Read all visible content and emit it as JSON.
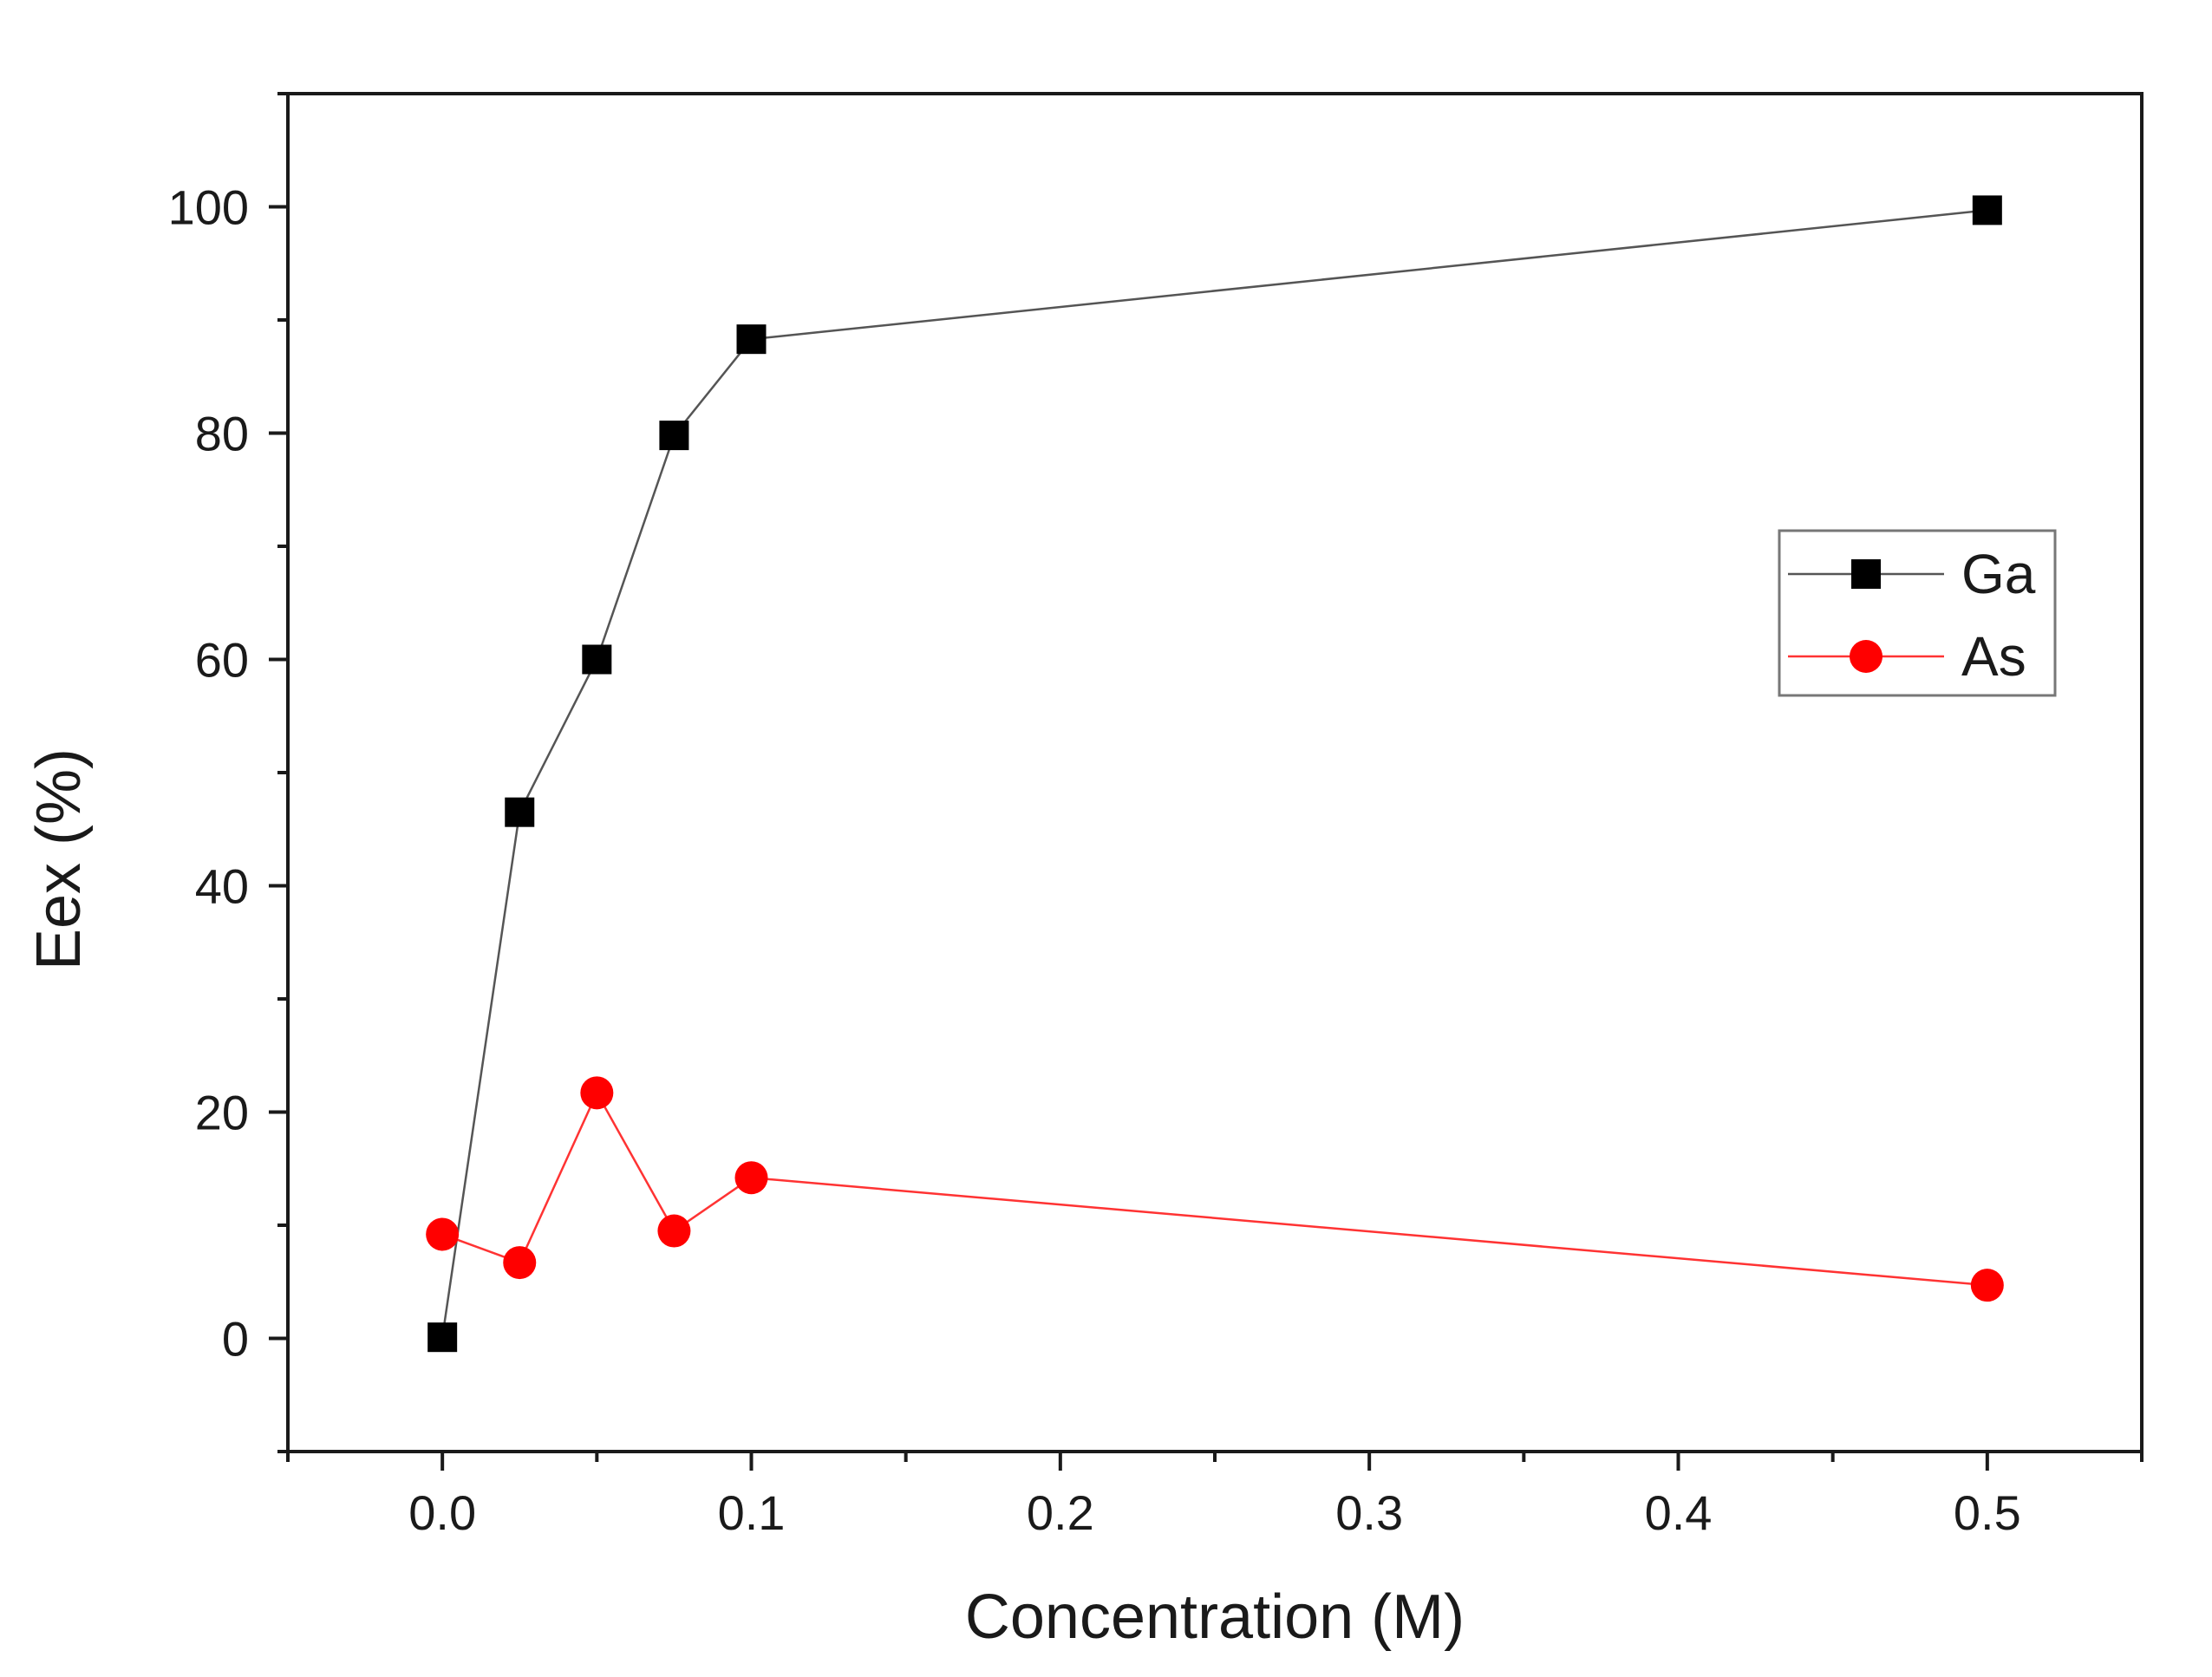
{
  "chart_data": {
    "type": "line",
    "title": "",
    "xlabel": "Concentration (M)",
    "ylabel": "Eex (%)",
    "xlim": [
      -0.05,
      0.55
    ],
    "ylim": [
      -10,
      110
    ],
    "x_ticks": [
      0.0,
      0.1,
      0.2,
      0.3,
      0.4,
      0.5
    ],
    "x_tick_labels": [
      "0.0",
      "0.1",
      "0.2",
      "0.3",
      "0.4",
      "0.5"
    ],
    "x_minor_step": 0.05,
    "y_ticks": [
      0,
      20,
      40,
      60,
      80,
      100
    ],
    "y_tick_labels": [
      "0",
      "20",
      "40",
      "60",
      "80",
      "100"
    ],
    "y_minor_step": 10,
    "grid": false,
    "legend_position": "right",
    "series": [
      {
        "name": "Ga",
        "marker": "square",
        "color": "#000000",
        "line_color": "#555555",
        "x": [
          0.0,
          0.025,
          0.05,
          0.075,
          0.1,
          0.5
        ],
        "y": [
          0.1,
          46.5,
          60.0,
          79.8,
          88.3,
          99.7
        ]
      },
      {
        "name": "As",
        "marker": "circle",
        "color": "#ff0000",
        "line_color": "#ff3333",
        "x": [
          0.0,
          0.025,
          0.05,
          0.075,
          0.1,
          0.5
        ],
        "y": [
          9.2,
          6.7,
          21.7,
          9.5,
          14.2,
          4.7
        ]
      }
    ]
  }
}
